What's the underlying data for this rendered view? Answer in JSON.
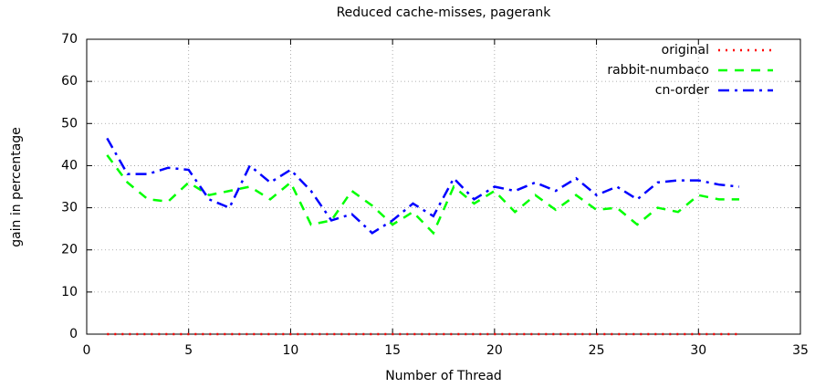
{
  "chart_data": {
    "type": "line",
    "title": "Reduced cache-misses, pagerank",
    "x_label": "Number of Thread",
    "y_label": "gain in percentage",
    "x": [
      1,
      2,
      3,
      4,
      5,
      6,
      7,
      8,
      9,
      10,
      11,
      12,
      13,
      14,
      15,
      16,
      17,
      18,
      19,
      20,
      21,
      22,
      23,
      24,
      25,
      26,
      27,
      28,
      29,
      30,
      31,
      32
    ],
    "series": [
      {
        "name": "original",
        "color": "#ff0000",
        "dash": "dotted",
        "values": [
          0,
          0,
          0,
          0,
          0,
          0,
          0,
          0,
          0,
          0,
          0,
          0,
          0,
          0,
          0,
          0,
          0,
          0,
          0,
          0,
          0,
          0,
          0,
          0,
          0,
          0,
          0,
          0,
          0,
          0,
          0,
          0
        ]
      },
      {
        "name": "rabbit-numbaco",
        "color": "#00ff00",
        "dash": "dashed",
        "values": [
          42.5,
          36,
          32,
          31.5,
          36,
          33,
          34,
          35,
          32,
          36,
          26,
          27,
          34,
          30.5,
          26,
          29,
          24,
          35,
          31,
          34,
          29,
          33,
          29.5,
          33,
          29.5,
          30,
          26,
          30,
          29,
          33,
          32,
          32
        ]
      },
      {
        "name": "cn-order",
        "color": "#0000ff",
        "dash": "dashdot",
        "values": [
          46.5,
          38,
          38,
          39.5,
          39,
          32,
          30,
          40,
          36,
          39,
          34,
          27,
          28.5,
          24,
          27,
          31,
          28,
          37,
          32,
          35,
          34,
          36,
          34,
          37,
          33,
          35,
          32,
          36,
          36.5,
          36.5,
          35.5,
          35
        ]
      }
    ],
    "xlim": [
      0,
      35
    ],
    "xticks": [
      0,
      5,
      10,
      15,
      20,
      25,
      30,
      35
    ],
    "ylim": [
      0,
      70
    ],
    "yticks": [
      0,
      10,
      20,
      30,
      40,
      50,
      60,
      70
    ],
    "grid": true,
    "legend": "top right"
  }
}
